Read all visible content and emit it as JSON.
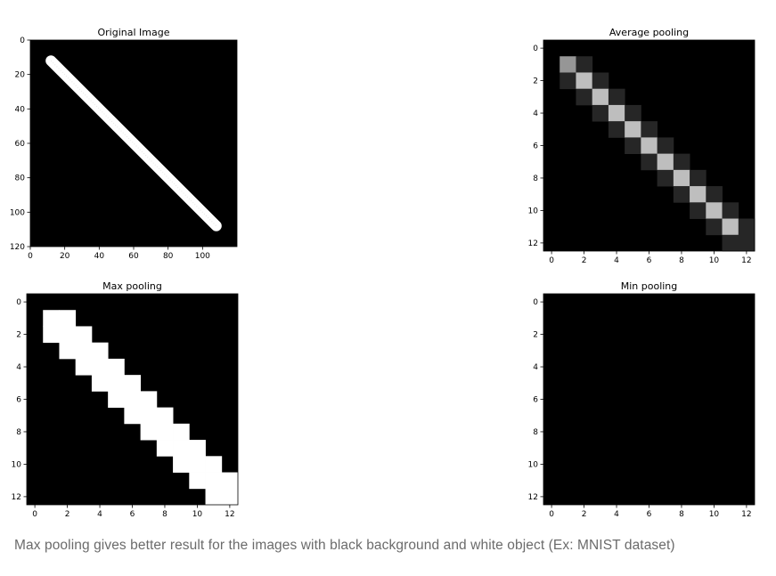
{
  "caption": "Max pooling gives better result for the images with black background and white object (Ex: MNIST dataset)",
  "chart_data": [
    {
      "type": "heatmap",
      "title": "Original Image",
      "colormap": "gray",
      "image_size": [
        120,
        120
      ],
      "xlim": [
        0,
        120
      ],
      "ylim": [
        0,
        120
      ],
      "x_ticks": [
        0,
        20,
        40,
        60,
        80,
        100
      ],
      "y_ticks": [
        0,
        20,
        40,
        60,
        80,
        100,
        120
      ],
      "line": {
        "start": [
          12,
          12
        ],
        "end": [
          108,
          108
        ],
        "value": 255
      }
    },
    {
      "type": "heatmap",
      "title": "Average pooling",
      "colormap": "gray",
      "image_size": [
        13,
        13
      ],
      "x_ticks": [
        0,
        2,
        4,
        6,
        8,
        10,
        12
      ],
      "y_ticks": [
        0,
        2,
        4,
        6,
        8,
        10,
        12
      ],
      "cells": [
        {
          "row": 1,
          "col": 1,
          "value": 150
        },
        {
          "row": 1,
          "col": 2,
          "value": 38
        },
        {
          "row": 2,
          "col": 1,
          "value": 38
        },
        {
          "row": 2,
          "col": 2,
          "value": 190
        },
        {
          "row": 2,
          "col": 3,
          "value": 38
        },
        {
          "row": 3,
          "col": 2,
          "value": 38
        },
        {
          "row": 3,
          "col": 3,
          "value": 190
        },
        {
          "row": 3,
          "col": 4,
          "value": 38
        },
        {
          "row": 4,
          "col": 3,
          "value": 38
        },
        {
          "row": 4,
          "col": 4,
          "value": 190
        },
        {
          "row": 4,
          "col": 5,
          "value": 38
        },
        {
          "row": 5,
          "col": 4,
          "value": 38
        },
        {
          "row": 5,
          "col": 5,
          "value": 190
        },
        {
          "row": 5,
          "col": 6,
          "value": 38
        },
        {
          "row": 6,
          "col": 5,
          "value": 38
        },
        {
          "row": 6,
          "col": 6,
          "value": 190
        },
        {
          "row": 6,
          "col": 7,
          "value": 38
        },
        {
          "row": 7,
          "col": 6,
          "value": 38
        },
        {
          "row": 7,
          "col": 7,
          "value": 190
        },
        {
          "row": 7,
          "col": 8,
          "value": 38
        },
        {
          "row": 8,
          "col": 7,
          "value": 38
        },
        {
          "row": 8,
          "col": 8,
          "value": 190
        },
        {
          "row": 8,
          "col": 9,
          "value": 38
        },
        {
          "row": 9,
          "col": 8,
          "value": 38
        },
        {
          "row": 9,
          "col": 9,
          "value": 190
        },
        {
          "row": 9,
          "col": 10,
          "value": 38
        },
        {
          "row": 10,
          "col": 9,
          "value": 38
        },
        {
          "row": 10,
          "col": 10,
          "value": 190
        },
        {
          "row": 10,
          "col": 11,
          "value": 38
        },
        {
          "row": 11,
          "col": 10,
          "value": 38
        },
        {
          "row": 11,
          "col": 11,
          "value": 190
        },
        {
          "row": 11,
          "col": 12,
          "value": 38
        },
        {
          "row": 12,
          "col": 11,
          "value": 38
        },
        {
          "row": 12,
          "col": 12,
          "value": 38
        }
      ]
    },
    {
      "type": "heatmap",
      "title": "Max pooling",
      "colormap": "gray",
      "image_size": [
        13,
        13
      ],
      "x_ticks": [
        0,
        2,
        4,
        6,
        8,
        10,
        12
      ],
      "y_ticks": [
        0,
        2,
        4,
        6,
        8,
        10,
        12
      ],
      "cells": [
        {
          "row": 1,
          "col": 1,
          "value": 255
        },
        {
          "row": 1,
          "col": 2,
          "value": 255
        },
        {
          "row": 2,
          "col": 1,
          "value": 255
        },
        {
          "row": 2,
          "col": 2,
          "value": 255
        },
        {
          "row": 2,
          "col": 3,
          "value": 255
        },
        {
          "row": 3,
          "col": 2,
          "value": 255
        },
        {
          "row": 3,
          "col": 3,
          "value": 255
        },
        {
          "row": 3,
          "col": 4,
          "value": 255
        },
        {
          "row": 4,
          "col": 3,
          "value": 255
        },
        {
          "row": 4,
          "col": 4,
          "value": 255
        },
        {
          "row": 4,
          "col": 5,
          "value": 255
        },
        {
          "row": 5,
          "col": 4,
          "value": 255
        },
        {
          "row": 5,
          "col": 5,
          "value": 255
        },
        {
          "row": 5,
          "col": 6,
          "value": 255
        },
        {
          "row": 6,
          "col": 5,
          "value": 255
        },
        {
          "row": 6,
          "col": 6,
          "value": 255
        },
        {
          "row": 6,
          "col": 7,
          "value": 255
        },
        {
          "row": 7,
          "col": 6,
          "value": 255
        },
        {
          "row": 7,
          "col": 7,
          "value": 255
        },
        {
          "row": 7,
          "col": 8,
          "value": 255
        },
        {
          "row": 8,
          "col": 7,
          "value": 255
        },
        {
          "row": 8,
          "col": 8,
          "value": 255
        },
        {
          "row": 8,
          "col": 9,
          "value": 255
        },
        {
          "row": 9,
          "col": 8,
          "value": 255
        },
        {
          "row": 9,
          "col": 9,
          "value": 255
        },
        {
          "row": 9,
          "col": 10,
          "value": 255
        },
        {
          "row": 10,
          "col": 9,
          "value": 255
        },
        {
          "row": 10,
          "col": 10,
          "value": 255
        },
        {
          "row": 10,
          "col": 11,
          "value": 255
        },
        {
          "row": 11,
          "col": 10,
          "value": 255
        },
        {
          "row": 11,
          "col": 11,
          "value": 255
        },
        {
          "row": 11,
          "col": 12,
          "value": 255
        },
        {
          "row": 12,
          "col": 11,
          "value": 255
        },
        {
          "row": 12,
          "col": 12,
          "value": 255
        }
      ]
    },
    {
      "type": "heatmap",
      "title": "Min pooling",
      "colormap": "gray",
      "image_size": [
        13,
        13
      ],
      "x_ticks": [
        0,
        2,
        4,
        6,
        8,
        10,
        12
      ],
      "y_ticks": [
        0,
        2,
        4,
        6,
        8,
        10,
        12
      ],
      "cells": []
    }
  ]
}
